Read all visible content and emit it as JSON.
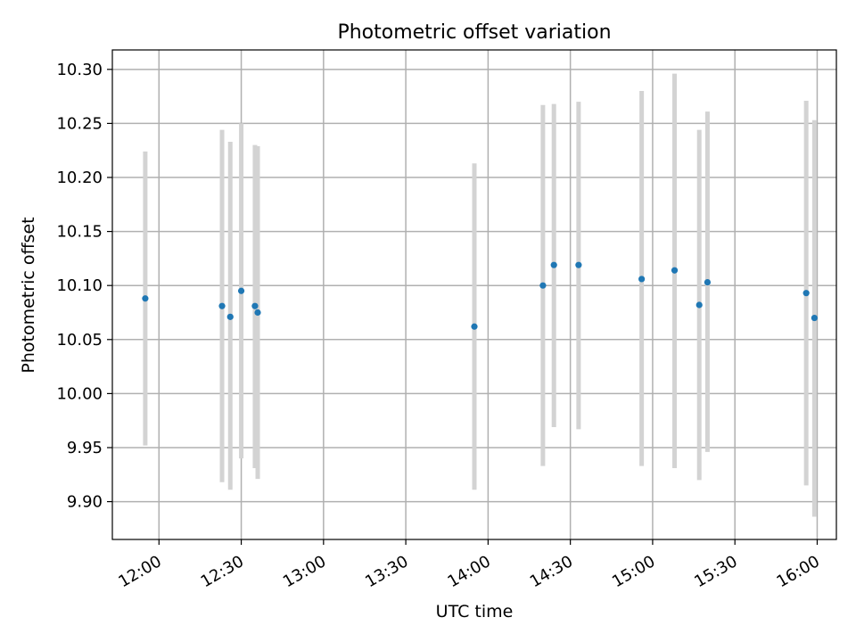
{
  "chart_data": {
    "type": "scatter",
    "title": "Photometric offset variation",
    "xlabel": "UTC time",
    "ylabel": "Photometric offset",
    "x_ticks": [
      "12:00",
      "12:30",
      "13:00",
      "13:30",
      "14:00",
      "14:30",
      "15:00",
      "15:30",
      "16:00"
    ],
    "x_range": [
      "11:43",
      "16:07"
    ],
    "ylim": [
      9.865,
      10.318
    ],
    "y_ticks": [
      "9.90",
      "9.95",
      "10.00",
      "10.05",
      "10.10",
      "10.15",
      "10.20",
      "10.25",
      "10.30"
    ],
    "grid": true,
    "colors": {
      "point": "#1f77b4",
      "errorbar": "#d3d3d3",
      "grid": "#b0b0b0"
    },
    "points": [
      {
        "time": "11:55",
        "y": 10.088,
        "ylow": 9.952,
        "yhigh": 10.224
      },
      {
        "time": "12:23",
        "y": 10.081,
        "ylow": 9.918,
        "yhigh": 10.244
      },
      {
        "time": "12:26",
        "y": 10.071,
        "ylow": 9.911,
        "yhigh": 10.233
      },
      {
        "time": "12:30",
        "y": 10.095,
        "ylow": 9.94,
        "yhigh": 10.25
      },
      {
        "time": "12:35",
        "y": 10.081,
        "ylow": 9.931,
        "yhigh": 10.23
      },
      {
        "time": "12:36",
        "y": 10.075,
        "ylow": 9.921,
        "yhigh": 10.229
      },
      {
        "time": "13:55",
        "y": 10.062,
        "ylow": 9.911,
        "yhigh": 10.213
      },
      {
        "time": "14:20",
        "y": 10.1,
        "ylow": 9.933,
        "yhigh": 10.267
      },
      {
        "time": "14:24",
        "y": 10.119,
        "ylow": 9.969,
        "yhigh": 10.268
      },
      {
        "time": "14:33",
        "y": 10.119,
        "ylow": 9.967,
        "yhigh": 10.27
      },
      {
        "time": "14:56",
        "y": 10.106,
        "ylow": 9.933,
        "yhigh": 10.28
      },
      {
        "time": "15:08",
        "y": 10.114,
        "ylow": 9.931,
        "yhigh": 10.296
      },
      {
        "time": "15:17",
        "y": 10.082,
        "ylow": 9.92,
        "yhigh": 10.244
      },
      {
        "time": "15:20",
        "y": 10.103,
        "ylow": 9.946,
        "yhigh": 10.261
      },
      {
        "time": "15:56",
        "y": 10.093,
        "ylow": 9.915,
        "yhigh": 10.271
      },
      {
        "time": "15:59",
        "y": 10.07,
        "ylow": 9.886,
        "yhigh": 10.253
      }
    ]
  }
}
